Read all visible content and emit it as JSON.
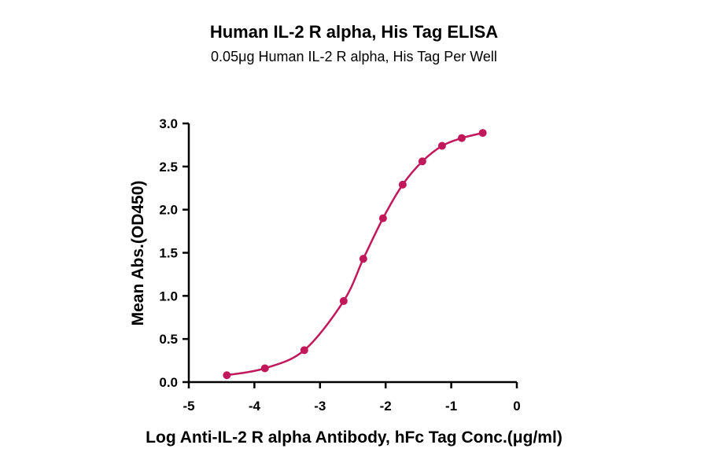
{
  "chart_data": {
    "type": "line",
    "title": "Human IL-2 R alpha, His Tag ELISA",
    "subtitle": "0.05μg Human IL-2 R alpha, His Tag Per Well",
    "xlabel": "Log Anti-IL-2 R alpha Antibody, hFc Tag Conc.(μg/ml)",
    "ylabel": "Mean Abs.(OD450)",
    "xlim": [
      -5,
      0
    ],
    "ylim": [
      0,
      3.0
    ],
    "x_ticks": [
      -5,
      -4,
      -3,
      -2,
      -1,
      0
    ],
    "x_tick_labels": [
      "-5",
      "-4",
      "-3",
      "-2",
      "-1",
      "0"
    ],
    "y_ticks": [
      0.0,
      0.5,
      1.0,
      1.5,
      2.0,
      2.5,
      3.0
    ],
    "y_tick_labels": [
      "0.0",
      "0.5",
      "1.0",
      "1.5",
      "2.0",
      "2.5",
      "3.0"
    ],
    "grid": false,
    "series": [
      {
        "color": "#c2185b",
        "x": [
          -4.42,
          -3.84,
          -3.24,
          -2.64,
          -2.34,
          -2.04,
          -1.74,
          -1.44,
          -1.14,
          -0.84,
          -0.52
        ],
        "y": [
          0.08,
          0.16,
          0.37,
          0.94,
          1.43,
          1.9,
          2.29,
          2.56,
          2.74,
          2.83,
          2.89
        ]
      }
    ]
  }
}
